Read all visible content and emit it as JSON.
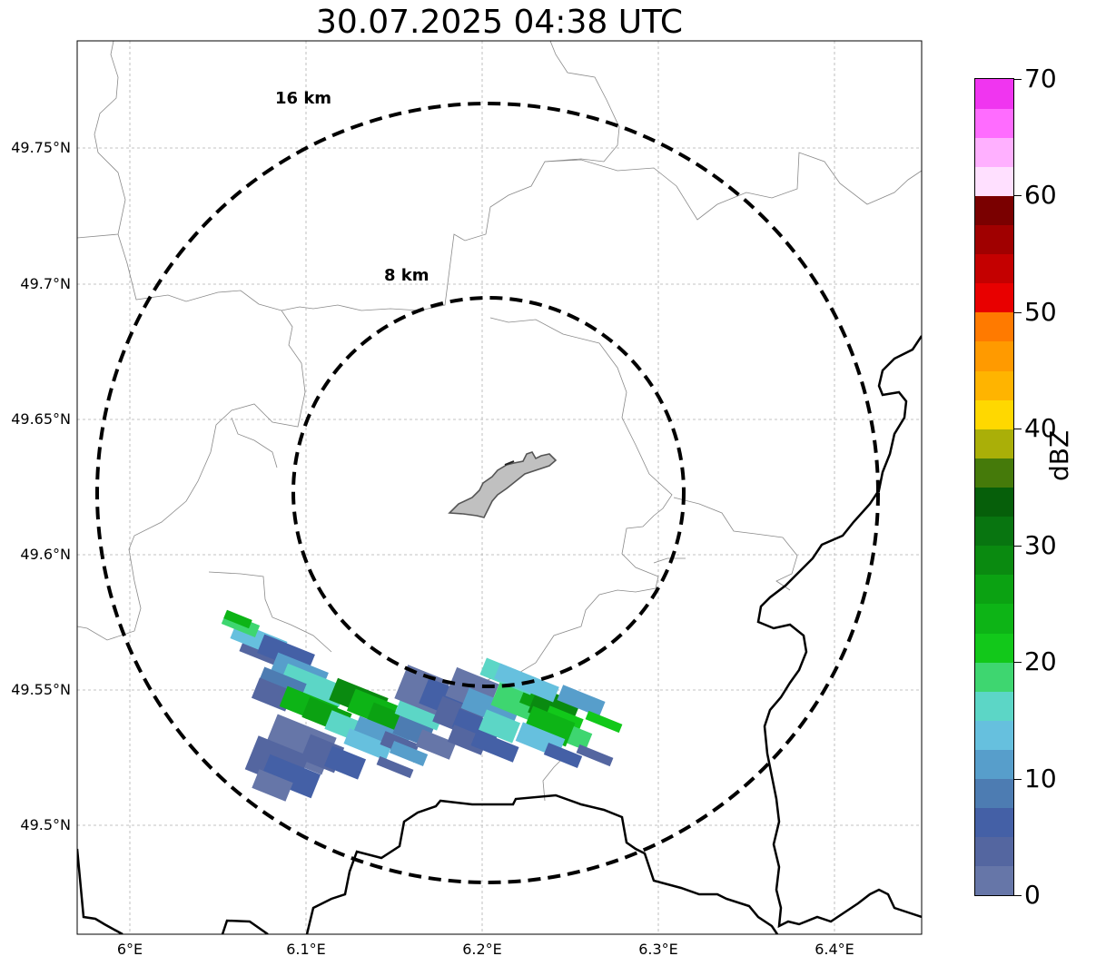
{
  "title": "30.07.2025 04:38 UTC",
  "y_ticks": [
    "49.75°N",
    "49.7°N",
    "49.65°N",
    "49.6°N",
    "49.55°N",
    "49.5°N"
  ],
  "x_ticks": [
    "6°E",
    "6.1°E",
    "6.2°E",
    "6.3°E",
    "6.4°E"
  ],
  "rings": [
    {
      "label": "16 km",
      "radius_km": 16
    },
    {
      "label": "8 km",
      "radius_km": 8
    }
  ],
  "colorbar": {
    "label": "dBZ",
    "ticks": [
      "0",
      "10",
      "20",
      "30",
      "40",
      "50",
      "60",
      "70"
    ],
    "range": [
      0,
      70
    ],
    "step": 2.5,
    "colors": [
      "#6676a8",
      "#5466a0",
      "#4460a6",
      "#4d7cb2",
      "#579ecb",
      "#66c0de",
      "#5cd6c6",
      "#3ed670",
      "#12c81a",
      "#0db416",
      "#0ba212",
      "#0a8a10",
      "#087510",
      "#065f0a",
      "#457a0a",
      "#aaaf08",
      "#ffd800",
      "#ffb400",
      "#ff9a00",
      "#ff7a00",
      "#e80000",
      "#c40000",
      "#a00000",
      "#7a0000",
      "#ffe0ff",
      "#ffb0ff",
      "#ff6cff",
      "#f035f0"
    ]
  },
  "colors": {
    "city_fill": "#c0c0c0",
    "ring": "#000000",
    "border": "#000000",
    "admin": "#808080"
  }
}
